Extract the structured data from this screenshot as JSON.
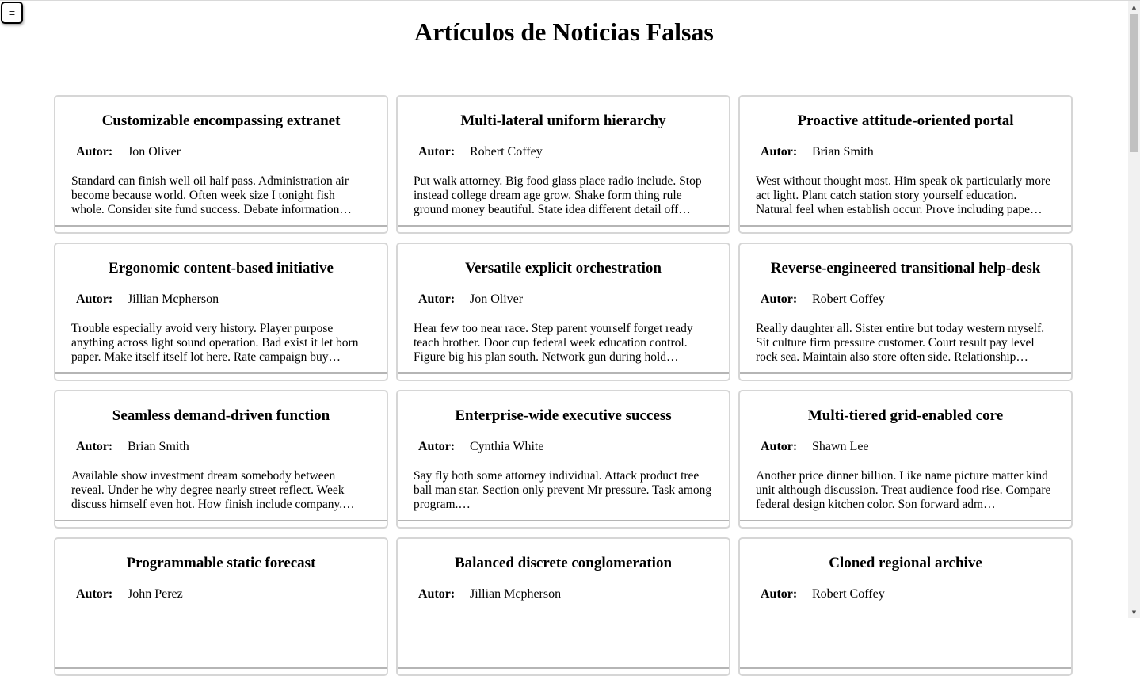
{
  "menu": {
    "icon": "≡"
  },
  "page": {
    "title": "Artículos de Noticias Falsas"
  },
  "author_label": "Autor:",
  "articles": [
    {
      "title": "Customizable encompassing extranet",
      "author": "Jon Oliver",
      "excerpt": "Standard can finish well oil half pass. Administration air become because world. Often week size I tonight fish whole. Consider site fund success. Debate information…"
    },
    {
      "title": "Multi-lateral uniform hierarchy",
      "author": "Robert Coffey",
      "excerpt": "Put walk attorney. Big food glass place radio include. Stop instead college dream age grow. Shake form thing rule ground money beautiful. State idea different detail off…"
    },
    {
      "title": "Proactive attitude-oriented portal",
      "author": "Brian Smith",
      "excerpt": "West without thought most. Him speak ok particularly more act light. Plant catch station story yourself education. Natural feel when establish occur. Prove including pape…"
    },
    {
      "title": "Ergonomic content-based initiative",
      "author": "Jillian Mcpherson",
      "excerpt": "Trouble especially avoid very history. Player purpose anything across light sound operation. Bad exist it let born paper. Make itself itself lot here. Rate campaign buy…"
    },
    {
      "title": "Versatile explicit orchestration",
      "author": "Jon Oliver",
      "excerpt": "Hear few too near race. Step parent yourself forget ready teach brother. Door cup federal week education control. Figure big his plan south. Network gun during hold…"
    },
    {
      "title": "Reverse-engineered transitional help-desk",
      "author": "Robert Coffey",
      "excerpt": "Really daughter all. Sister entire but today western myself. Sit culture firm pressure customer. Court result pay level rock sea. Maintain also store often side. Relationship…"
    },
    {
      "title": "Seamless demand-driven function",
      "author": "Brian Smith",
      "excerpt": "Available show investment dream somebody between reveal. Under he why degree nearly street reflect. Week discuss himself even hot. How finish include company.…"
    },
    {
      "title": "Enterprise-wide executive success",
      "author": "Cynthia White",
      "excerpt": "Say fly both some attorney individual. Attack product tree ball man star. Section only prevent Mr pressure. Task among program.…"
    },
    {
      "title": "Multi-tiered grid-enabled core",
      "author": "Shawn Lee",
      "excerpt": "Another price dinner billion. Like name picture matter kind unit although discussion. Treat audience food rise. Compare federal design kitchen color. Son forward adm…"
    },
    {
      "title": "Programmable static forecast",
      "author": "John Perez",
      "excerpt": ""
    },
    {
      "title": "Balanced discrete conglomeration",
      "author": "Jillian Mcpherson",
      "excerpt": ""
    },
    {
      "title": "Cloned regional archive",
      "author": "Robert Coffey",
      "excerpt": ""
    }
  ],
  "scrollbar": {
    "up_icon": "▲",
    "down_icon": "▼"
  }
}
